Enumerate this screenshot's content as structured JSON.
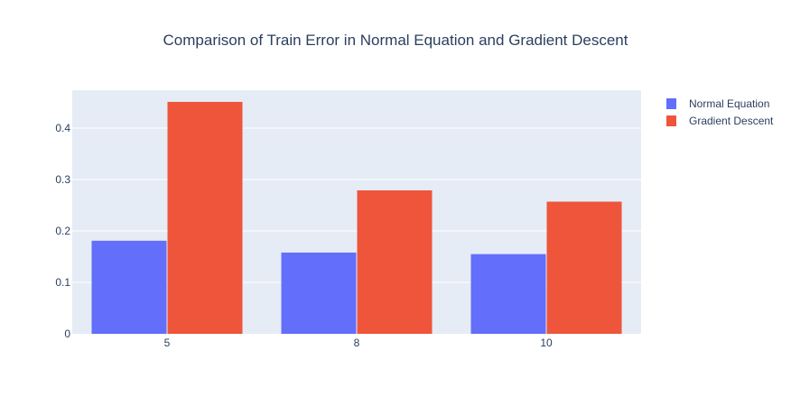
{
  "chart_data": {
    "type": "bar",
    "title": "Comparison of Train Error in Normal Equation and Gradient Descent",
    "xlabel": "",
    "ylabel": "",
    "categories": [
      "5",
      "8",
      "10"
    ],
    "series": [
      {
        "name": "Normal Equation",
        "values": [
          0.181,
          0.158,
          0.155
        ]
      },
      {
        "name": "Gradient Descent",
        "values": [
          0.451,
          0.279,
          0.257
        ]
      }
    ],
    "ylim": [
      0,
      0.4737
    ],
    "yticks": [
      {
        "value": 0,
        "label": "0"
      },
      {
        "value": 0.1,
        "label": "0.1"
      },
      {
        "value": 0.2,
        "label": "0.2"
      },
      {
        "value": 0.3,
        "label": "0.3"
      },
      {
        "value": 0.4,
        "label": "0.4"
      }
    ],
    "grid": true,
    "legend_position": "top-right",
    "colors": {
      "series": [
        "#636efa",
        "#ef553b"
      ],
      "plot_background": "#e5ecf6",
      "gridline": "#ffffff",
      "text": "#2a3f5f"
    }
  }
}
